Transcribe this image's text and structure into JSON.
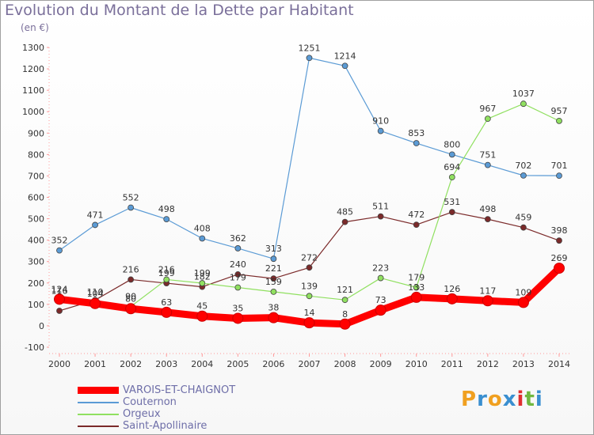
{
  "title": "Evolution du Montant de la Dette par Habitant",
  "subtitle": "(en €)",
  "chart_data": {
    "type": "line",
    "x": [
      "2000",
      "2001",
      "2002",
      "2003",
      "2004",
      "2005",
      "2006",
      "2007",
      "2008",
      "2009",
      "2010",
      "2011",
      "2012",
      "2013",
      "2014"
    ],
    "ylim": [
      -100,
      1300
    ],
    "yticks": [
      "-100",
      "0",
      "100",
      "200",
      "300",
      "400",
      "500",
      "600",
      "700",
      "800",
      "900",
      "1000",
      "1100",
      "1200",
      "1300"
    ],
    "grid": false,
    "legend_position": "bottom-left",
    "series": [
      {
        "name": "VAROIS-ET-CHAIGNOT",
        "color": "#ff0000",
        "values": [
          124,
          104,
          80,
          63,
          45,
          35,
          38,
          14,
          8,
          73,
          133,
          126,
          117,
          109,
          269
        ],
        "labels": [
          "124",
          "104",
          "80",
          "63",
          "45",
          "35",
          "38",
          "14",
          "8",
          "73",
          "133",
          "126",
          "117",
          "109",
          "269"
        ]
      },
      {
        "name": "Couternon",
        "color": "#5b9bd5",
        "values": [
          352,
          471,
          552,
          498,
          408,
          362,
          313,
          1251,
          1214,
          910,
          853,
          800,
          751,
          702,
          701
        ],
        "labels": [
          "352",
          "471",
          "552",
          "498",
          "408",
          "362",
          "313",
          "1251",
          "1214",
          "910",
          "853",
          "800",
          "751",
          "702",
          "701"
        ]
      },
      {
        "name": "Orgeux",
        "color": "#90e060",
        "values": [
          116,
          110,
          90,
          216,
          199,
          179,
          159,
          139,
          121,
          223,
          179,
          694,
          967,
          1037,
          957
        ],
        "labels": [
          "116",
          "110",
          "90",
          "216",
          "199",
          "179",
          "159",
          "139",
          "121",
          "223",
          "179",
          "694",
          "967",
          "1037",
          "957"
        ]
      },
      {
        "name": "Saint-Apollinaire",
        "color": "#7b2a2a",
        "values": [
          70,
          120,
          216,
          199,
          182,
          240,
          221,
          272,
          485,
          511,
          472,
          531,
          498,
          459,
          398
        ],
        "labels": [
          "",
          "",
          "216",
          "199",
          "182",
          "240",
          "221",
          "272",
          "485",
          "511",
          "472",
          "531",
          "498",
          "459",
          "398"
        ]
      }
    ]
  },
  "logo": {
    "letters": [
      "P",
      "r",
      "o",
      "x",
      "i",
      "t",
      "i"
    ]
  }
}
